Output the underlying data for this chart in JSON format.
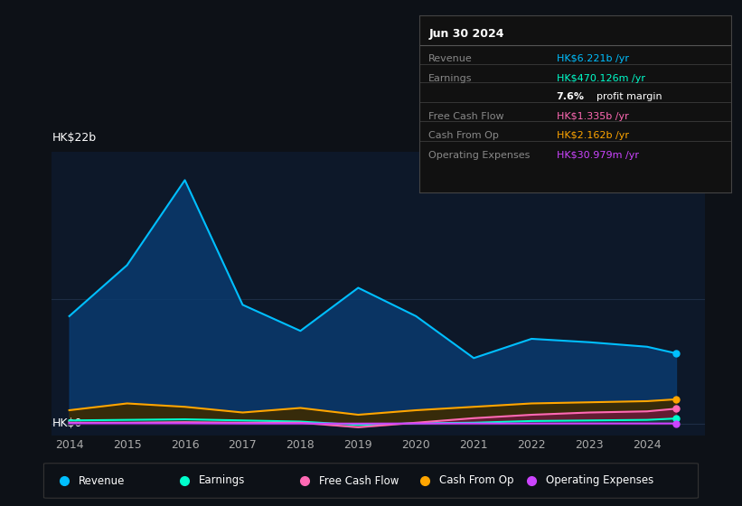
{
  "bg_color": "#0d1117",
  "chart_bg": "#0d1829",
  "grid_color": "#1e2d45",
  "years": [
    2014,
    2015,
    2016,
    2017,
    2018,
    2019,
    2020,
    2021,
    2022,
    2023,
    2024,
    2024.5
  ],
  "revenue": [
    9.5,
    14.0,
    21.5,
    10.5,
    8.2,
    12.0,
    9.5,
    5.8,
    7.5,
    7.2,
    6.8,
    6.221
  ],
  "earnings": [
    0.3,
    0.35,
    0.4,
    0.3,
    0.2,
    -0.1,
    0.05,
    0.1,
    0.25,
    0.3,
    0.35,
    0.47
  ],
  "free_cash_flow": [
    0.1,
    0.1,
    0.15,
    0.1,
    0.1,
    -0.3,
    0.1,
    0.5,
    0.8,
    1.0,
    1.1,
    1.335
  ],
  "cash_from_op": [
    1.2,
    1.8,
    1.5,
    1.0,
    1.4,
    0.8,
    1.2,
    1.5,
    1.8,
    1.9,
    2.0,
    2.162
  ],
  "op_expenses": [
    0.05,
    0.05,
    0.05,
    0.03,
    0.03,
    0.02,
    0.03,
    0.03,
    0.03,
    0.03,
    0.03,
    0.031
  ],
  "revenue_line_color": "#00bfff",
  "revenue_fill_color": "#0a3a6e",
  "earnings_line_color": "#00ffcc",
  "earnings_fill_color": "#0a4040",
  "free_cash_flow_line_color": "#ff69b4",
  "free_cash_flow_fill_color": "#6b1a3a",
  "cash_from_op_line_color": "#ffa500",
  "cash_from_op_fill_color": "#3d2a00",
  "op_expenses_line_color": "#cc44ff",
  "op_expenses_fill_color": "#2a0a40",
  "y_label_top": "HK$22b",
  "y_label_zero": "HK$0",
  "x_ticks": [
    2014,
    2015,
    2016,
    2017,
    2018,
    2019,
    2020,
    2021,
    2022,
    2023,
    2024
  ],
  "ylim_min": -1.0,
  "ylim_max": 24.0,
  "legend_items": [
    "Revenue",
    "Earnings",
    "Free Cash Flow",
    "Cash From Op",
    "Operating Expenses"
  ],
  "legend_colors": [
    "#00bfff",
    "#00ffcc",
    "#ff69b4",
    "#ffa500",
    "#cc44ff"
  ],
  "info_box": {
    "title": "Jun 30 2024",
    "rows": [
      {
        "label": "Revenue",
        "value": "HK$6.221b /yr",
        "value_color": "#00bfff"
      },
      {
        "label": "Earnings",
        "value": "HK$470.126m /yr",
        "value_color": "#00ffcc"
      },
      {
        "label": "",
        "value": "7.6% profit margin",
        "value_color": "#ffffff",
        "bold_part": "7.6%"
      },
      {
        "label": "Free Cash Flow",
        "value": "HK$1.335b /yr",
        "value_color": "#ff69b4"
      },
      {
        "label": "Cash From Op",
        "value": "HK$2.162b /yr",
        "value_color": "#ffa500"
      },
      {
        "label": "Operating Expenses",
        "value": "HK$30.979m /yr",
        "value_color": "#cc44ff"
      }
    ]
  }
}
